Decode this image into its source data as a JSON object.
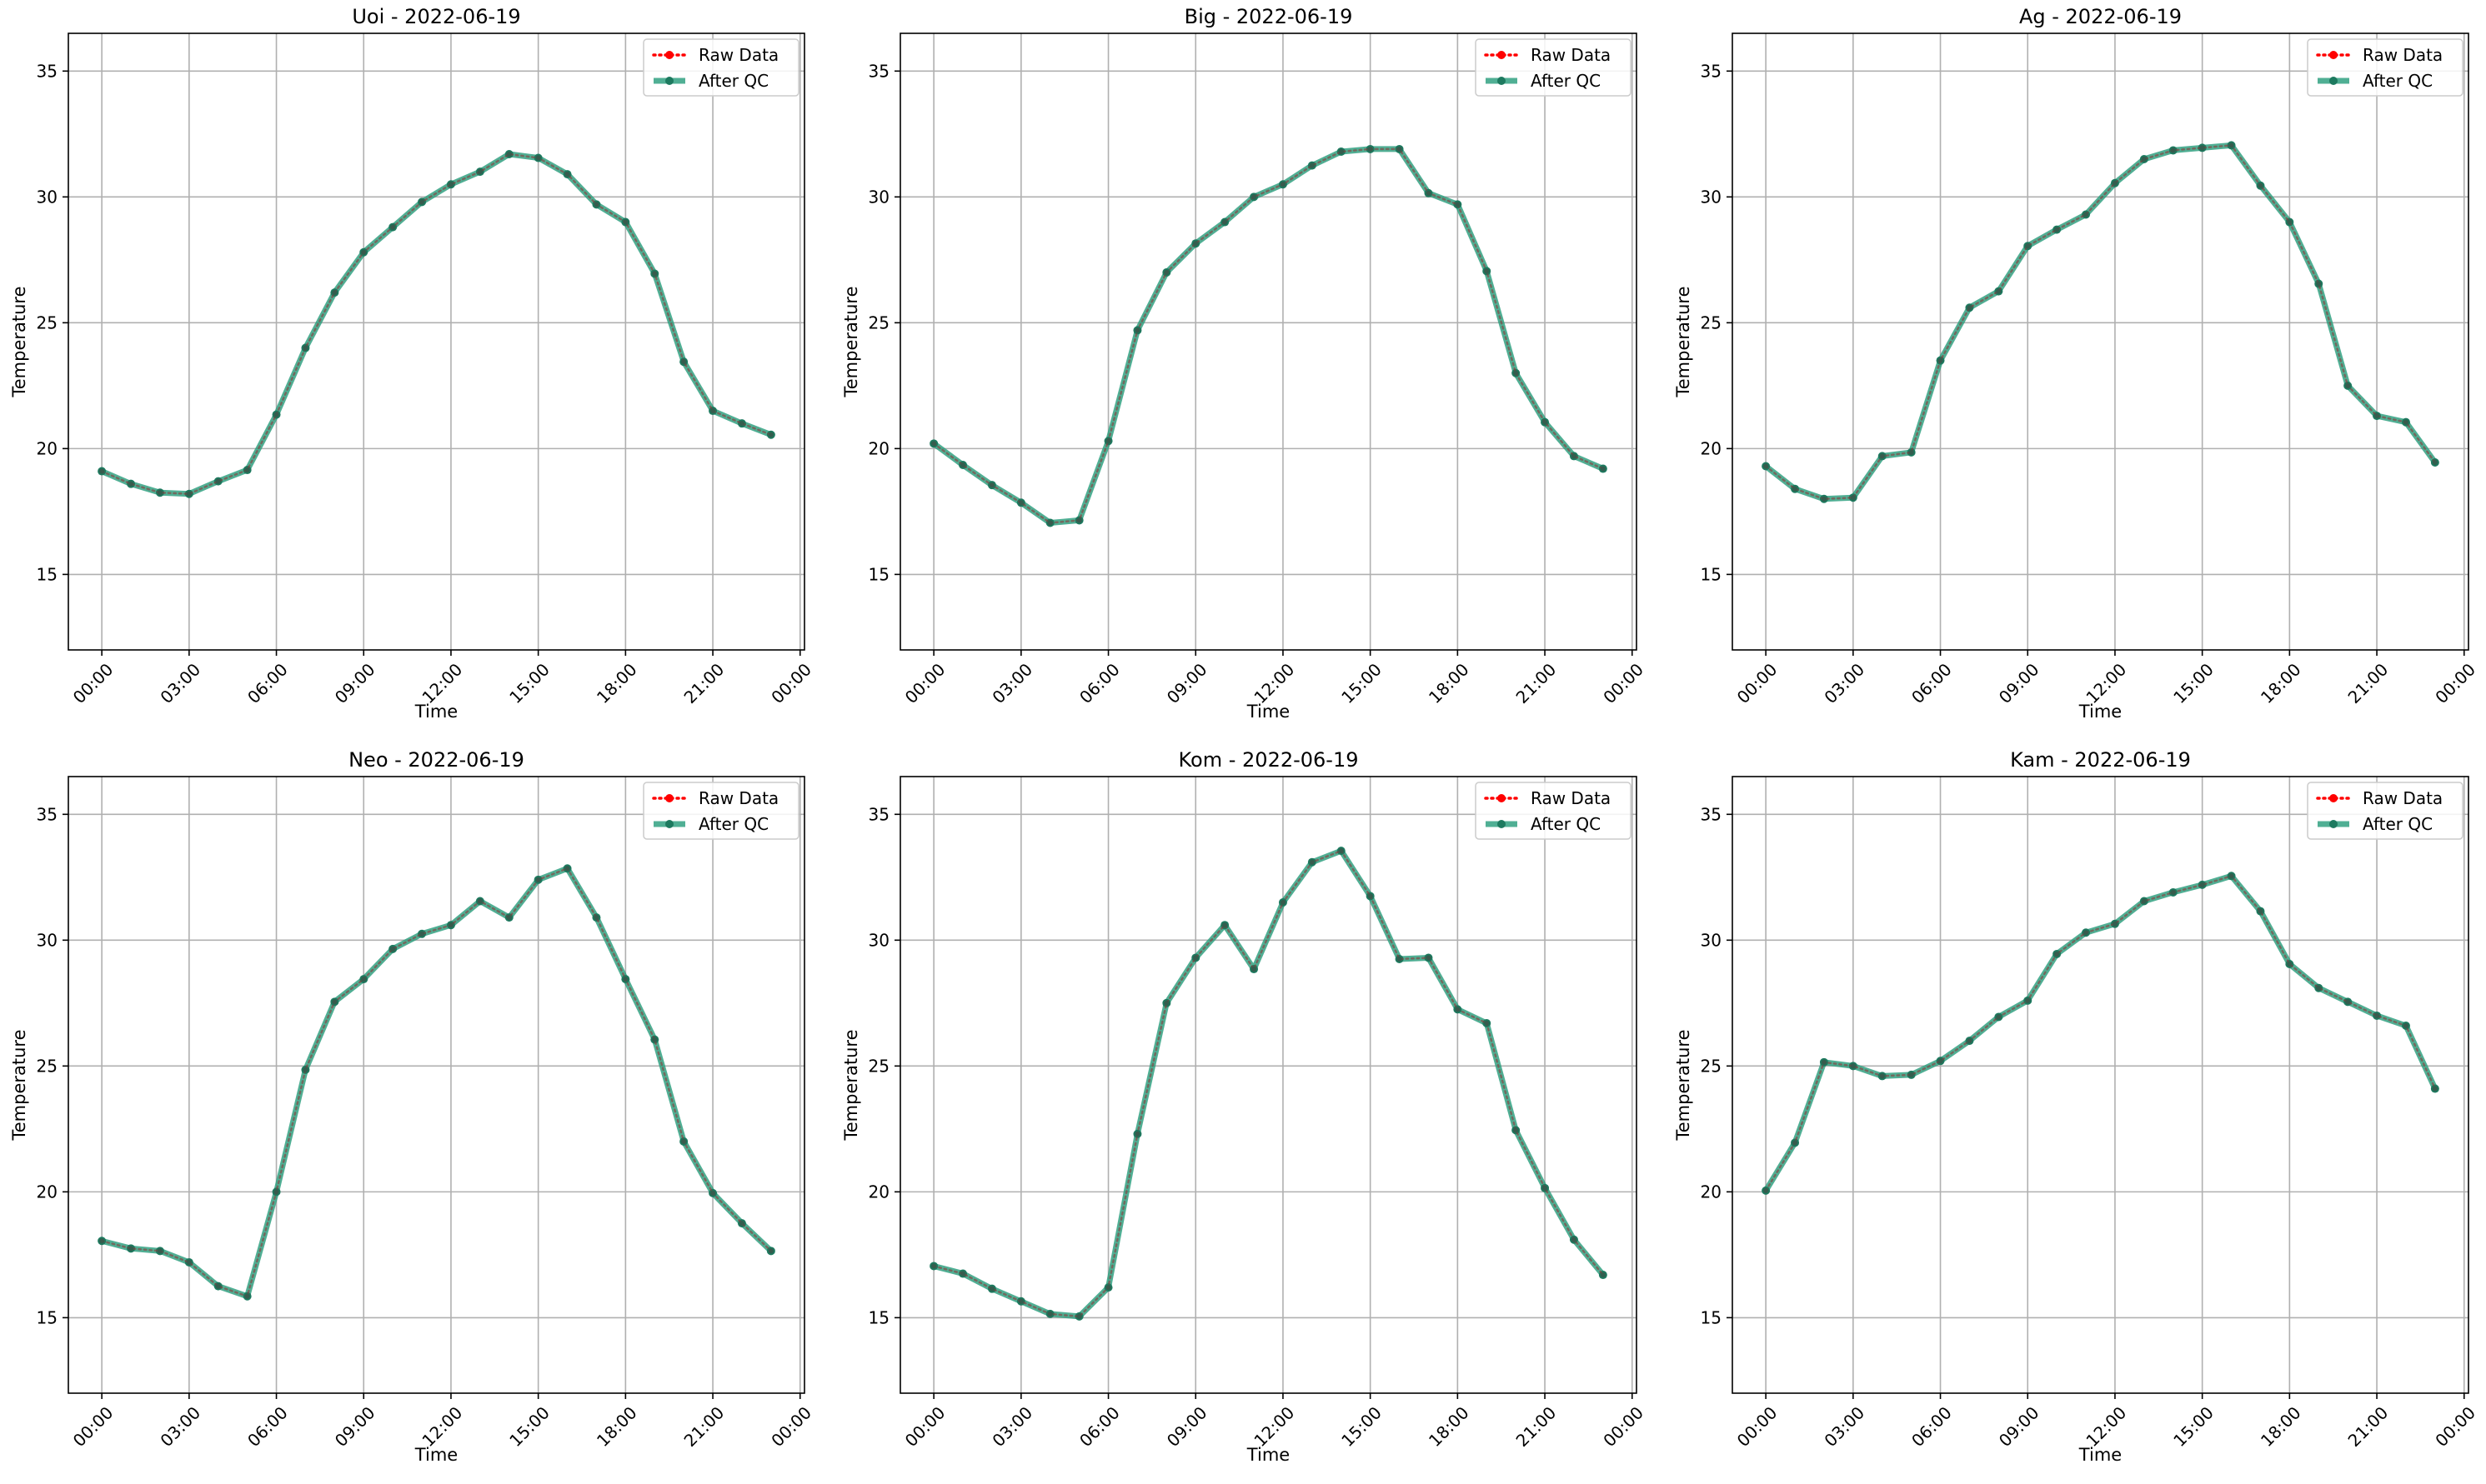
{
  "chart_data": [
    {
      "type": "line",
      "title": "Uoi - 2022-06-19",
      "xlabel": "Time",
      "ylabel": "Temperature",
      "xlim": [
        -1.15,
        24.15
      ],
      "ylim": [
        12,
        36.5
      ],
      "x_ticks": [
        0,
        3,
        6,
        9,
        12,
        15,
        18,
        21,
        24
      ],
      "x_tick_labels": [
        "00:00",
        "03:00",
        "06:00",
        "09:00",
        "12:00",
        "15:00",
        "18:00",
        "21:00",
        "00:00"
      ],
      "y_ticks": [
        15,
        20,
        25,
        30,
        35
      ],
      "y_tick_labels": [
        "15",
        "20",
        "25",
        "30",
        "35"
      ],
      "grid": true,
      "legend_position": "top-right",
      "x": [
        0,
        1,
        2,
        3,
        4,
        5,
        6,
        7,
        8,
        9,
        10,
        11,
        12,
        13,
        14,
        15,
        16,
        17,
        18,
        19,
        20,
        21,
        22,
        23
      ],
      "series": [
        {
          "name": "Raw Data",
          "color": "#ff0000",
          "style": "dotted",
          "values": [
            19.1,
            18.6,
            18.25,
            18.2,
            18.7,
            19.15,
            21.35,
            24.0,
            26.2,
            27.8,
            28.8,
            29.8,
            30.5,
            31.0,
            31.7,
            31.55,
            30.9,
            29.7,
            29.0,
            26.95,
            23.45,
            21.5,
            21.0,
            20.55
          ]
        },
        {
          "name": "After QC",
          "color": "#2a9d7c",
          "style": "solid",
          "values": [
            19.1,
            18.6,
            18.25,
            18.2,
            18.7,
            19.15,
            21.35,
            24.0,
            26.2,
            27.8,
            28.8,
            29.8,
            30.5,
            31.0,
            31.7,
            31.55,
            30.9,
            29.7,
            29.0,
            26.95,
            23.45,
            21.5,
            21.0,
            20.55
          ]
        }
      ]
    },
    {
      "type": "line",
      "title": "Big - 2022-06-19",
      "xlabel": "Time",
      "ylabel": "Temperature",
      "xlim": [
        -1.15,
        24.15
      ],
      "ylim": [
        12,
        36.5
      ],
      "x_ticks": [
        0,
        3,
        6,
        9,
        12,
        15,
        18,
        21,
        24
      ],
      "x_tick_labels": [
        "00:00",
        "03:00",
        "06:00",
        "09:00",
        "12:00",
        "15:00",
        "18:00",
        "21:00",
        "00:00"
      ],
      "y_ticks": [
        15,
        20,
        25,
        30,
        35
      ],
      "y_tick_labels": [
        "15",
        "20",
        "25",
        "30",
        "35"
      ],
      "grid": true,
      "legend_position": "top-right",
      "x": [
        0,
        1,
        2,
        3,
        4,
        5,
        6,
        7,
        8,
        9,
        10,
        11,
        12,
        13,
        14,
        15,
        16,
        17,
        18,
        19,
        20,
        21,
        22,
        23
      ],
      "series": [
        {
          "name": "Raw Data",
          "color": "#ff0000",
          "style": "dotted",
          "values": [
            20.2,
            19.35,
            18.55,
            17.85,
            17.05,
            17.15,
            20.3,
            24.7,
            27.0,
            28.15,
            29.0,
            30.0,
            30.5,
            31.25,
            31.8,
            31.9,
            31.9,
            30.15,
            29.7,
            27.05,
            23.0,
            21.05,
            19.7,
            19.2
          ]
        },
        {
          "name": "After QC",
          "color": "#2a9d7c",
          "style": "solid",
          "values": [
            20.2,
            19.35,
            18.55,
            17.85,
            17.05,
            17.15,
            20.3,
            24.7,
            27.0,
            28.15,
            29.0,
            30.0,
            30.5,
            31.25,
            31.8,
            31.9,
            31.9,
            30.15,
            29.7,
            27.05,
            23.0,
            21.05,
            19.7,
            19.2
          ]
        }
      ]
    },
    {
      "type": "line",
      "title": "Ag - 2022-06-19",
      "xlabel": "Time",
      "ylabel": "Temperature",
      "xlim": [
        -1.15,
        24.15
      ],
      "ylim": [
        12,
        36.5
      ],
      "x_ticks": [
        0,
        3,
        6,
        9,
        12,
        15,
        18,
        21,
        24
      ],
      "x_tick_labels": [
        "00:00",
        "03:00",
        "06:00",
        "09:00",
        "12:00",
        "15:00",
        "18:00",
        "21:00",
        "00:00"
      ],
      "y_ticks": [
        15,
        20,
        25,
        30,
        35
      ],
      "y_tick_labels": [
        "15",
        "20",
        "25",
        "30",
        "35"
      ],
      "grid": true,
      "legend_position": "top-right",
      "x": [
        0,
        1,
        2,
        3,
        4,
        5,
        6,
        7,
        8,
        9,
        10,
        11,
        12,
        13,
        14,
        15,
        16,
        17,
        18,
        19,
        20,
        21,
        22,
        23
      ],
      "series": [
        {
          "name": "Raw Data",
          "color": "#ff0000",
          "style": "dotted",
          "values": [
            19.3,
            18.4,
            18.0,
            18.05,
            19.7,
            19.85,
            23.5,
            25.6,
            26.25,
            28.05,
            28.7,
            29.3,
            30.55,
            31.5,
            31.85,
            31.95,
            32.05,
            30.45,
            29.0,
            26.55,
            22.5,
            21.3,
            21.05,
            19.45
          ]
        },
        {
          "name": "After QC",
          "color": "#2a9d7c",
          "style": "solid",
          "values": [
            19.3,
            18.4,
            18.0,
            18.05,
            19.7,
            19.85,
            23.5,
            25.6,
            26.25,
            28.05,
            28.7,
            29.3,
            30.55,
            31.5,
            31.85,
            31.95,
            32.05,
            30.45,
            29.0,
            26.55,
            22.5,
            21.3,
            21.05,
            19.45
          ]
        }
      ]
    },
    {
      "type": "line",
      "title": "Neo - 2022-06-19",
      "xlabel": "Time",
      "ylabel": "Temperature",
      "xlim": [
        -1.15,
        24.15
      ],
      "ylim": [
        12,
        36.5
      ],
      "x_ticks": [
        0,
        3,
        6,
        9,
        12,
        15,
        18,
        21,
        24
      ],
      "x_tick_labels": [
        "00:00",
        "03:00",
        "06:00",
        "09:00",
        "12:00",
        "15:00",
        "18:00",
        "21:00",
        "00:00"
      ],
      "y_ticks": [
        15,
        20,
        25,
        30,
        35
      ],
      "y_tick_labels": [
        "15",
        "20",
        "25",
        "30",
        "35"
      ],
      "grid": true,
      "legend_position": "top-right",
      "x": [
        0,
        1,
        2,
        3,
        4,
        5,
        6,
        7,
        8,
        9,
        10,
        11,
        12,
        13,
        14,
        15,
        16,
        17,
        18,
        19,
        20,
        21,
        22,
        23
      ],
      "series": [
        {
          "name": "Raw Data",
          "color": "#ff0000",
          "style": "dotted",
          "values": [
            18.05,
            17.75,
            17.65,
            17.2,
            16.25,
            15.85,
            20.0,
            24.85,
            27.55,
            28.45,
            29.65,
            30.25,
            30.6,
            31.55,
            30.9,
            32.4,
            32.85,
            30.9,
            28.45,
            26.05,
            22.0,
            19.95,
            18.75,
            17.65
          ]
        },
        {
          "name": "After QC",
          "color": "#2a9d7c",
          "style": "solid",
          "values": [
            18.05,
            17.75,
            17.65,
            17.2,
            16.25,
            15.85,
            20.0,
            24.85,
            27.55,
            28.45,
            29.65,
            30.25,
            30.6,
            31.55,
            30.9,
            32.4,
            32.85,
            30.9,
            28.45,
            26.05,
            22.0,
            19.95,
            18.75,
            17.65
          ]
        }
      ]
    },
    {
      "type": "line",
      "title": "Kom - 2022-06-19",
      "xlabel": "Time",
      "ylabel": "Temperature",
      "xlim": [
        -1.15,
        24.15
      ],
      "ylim": [
        12,
        36.5
      ],
      "x_ticks": [
        0,
        3,
        6,
        9,
        12,
        15,
        18,
        21,
        24
      ],
      "x_tick_labels": [
        "00:00",
        "03:00",
        "06:00",
        "09:00",
        "12:00",
        "15:00",
        "18:00",
        "21:00",
        "00:00"
      ],
      "y_ticks": [
        15,
        20,
        25,
        30,
        35
      ],
      "y_tick_labels": [
        "15",
        "20",
        "25",
        "30",
        "35"
      ],
      "grid": true,
      "legend_position": "top-right",
      "x": [
        0,
        1,
        2,
        3,
        4,
        5,
        6,
        7,
        8,
        9,
        10,
        11,
        12,
        13,
        14,
        15,
        16,
        17,
        18,
        19,
        20,
        21,
        22,
        23
      ],
      "series": [
        {
          "name": "Raw Data",
          "color": "#ff0000",
          "style": "dotted",
          "values": [
            17.05,
            16.75,
            16.15,
            15.65,
            15.15,
            15.05,
            16.2,
            22.3,
            27.5,
            29.3,
            30.6,
            28.85,
            31.5,
            33.1,
            33.55,
            31.75,
            29.25,
            29.3,
            27.25,
            26.7,
            22.45,
            20.15,
            18.1,
            16.7
          ]
        },
        {
          "name": "After QC",
          "color": "#2a9d7c",
          "style": "solid",
          "values": [
            17.05,
            16.75,
            16.15,
            15.65,
            15.15,
            15.05,
            16.2,
            22.3,
            27.5,
            29.3,
            30.6,
            28.85,
            31.5,
            33.1,
            33.55,
            31.75,
            29.25,
            29.3,
            27.25,
            26.7,
            22.45,
            20.15,
            18.1,
            16.7
          ]
        }
      ]
    },
    {
      "type": "line",
      "title": "Kam - 2022-06-19",
      "xlabel": "Time",
      "ylabel": "Temperature",
      "xlim": [
        -1.15,
        24.15
      ],
      "ylim": [
        12,
        36.5
      ],
      "x_ticks": [
        0,
        3,
        6,
        9,
        12,
        15,
        18,
        21,
        24
      ],
      "x_tick_labels": [
        "00:00",
        "03:00",
        "06:00",
        "09:00",
        "12:00",
        "15:00",
        "18:00",
        "21:00",
        "00:00"
      ],
      "y_ticks": [
        15,
        20,
        25,
        30,
        35
      ],
      "y_tick_labels": [
        "15",
        "20",
        "25",
        "30",
        "35"
      ],
      "grid": true,
      "legend_position": "top-right",
      "x": [
        0,
        1,
        2,
        3,
        4,
        5,
        6,
        7,
        8,
        9,
        10,
        11,
        12,
        13,
        14,
        15,
        16,
        17,
        18,
        19,
        20,
        21,
        22,
        23
      ],
      "series": [
        {
          "name": "Raw Data",
          "color": "#ff0000",
          "style": "dotted",
          "values": [
            20.05,
            21.95,
            25.15,
            25.0,
            24.6,
            24.65,
            25.2,
            26.0,
            26.95,
            27.6,
            29.45,
            30.3,
            30.65,
            31.55,
            31.9,
            32.2,
            32.55,
            31.15,
            29.05,
            28.1,
            27.55,
            27.0,
            26.6,
            24.1
          ]
        },
        {
          "name": "After QC",
          "color": "#2a9d7c",
          "style": "solid",
          "values": [
            20.05,
            21.95,
            25.15,
            25.0,
            24.6,
            24.65,
            25.2,
            26.0,
            26.95,
            27.6,
            29.45,
            30.3,
            30.65,
            31.55,
            31.9,
            32.2,
            32.55,
            31.15,
            29.05,
            28.1,
            27.55,
            27.0,
            26.6,
            24.1
          ]
        }
      ]
    }
  ]
}
